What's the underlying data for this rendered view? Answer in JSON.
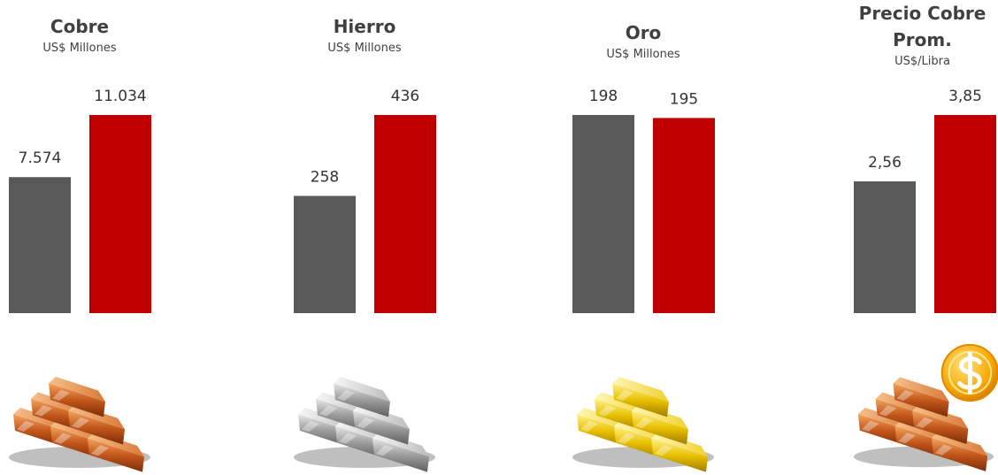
{
  "chart_data": [
    {
      "type": "bar",
      "title": "Cobre",
      "subtitle": "US$ Millones",
      "categories": [
        null,
        null
      ],
      "values": [
        7574,
        11034
      ],
      "value_labels": [
        "7.574",
        "11.034"
      ],
      "colors": [
        "#595959",
        "#c00000"
      ]
    },
    {
      "type": "bar",
      "title": "Hierro",
      "subtitle": "US$ Millones",
      "categories": [
        null,
        null
      ],
      "values": [
        258,
        436
      ],
      "colors": [
        "#595959",
        "#c00000"
      ]
    },
    {
      "type": "bar",
      "title": "Oro",
      "subtitle": "US$ Millones",
      "categories": [
        null,
        null
      ],
      "values": [
        198,
        195
      ],
      "colors": [
        "#595959",
        "#c00000"
      ]
    },
    {
      "type": "bar",
      "title": "Precio Cobre Prom.",
      "subtitle": "US$/Libra",
      "categories": [
        null,
        null
      ],
      "values": [
        2.56,
        3.85
      ],
      "value_labels": [
        "2,56",
        "3,85"
      ],
      "colors": [
        "#595959",
        "#c00000"
      ]
    }
  ]
}
